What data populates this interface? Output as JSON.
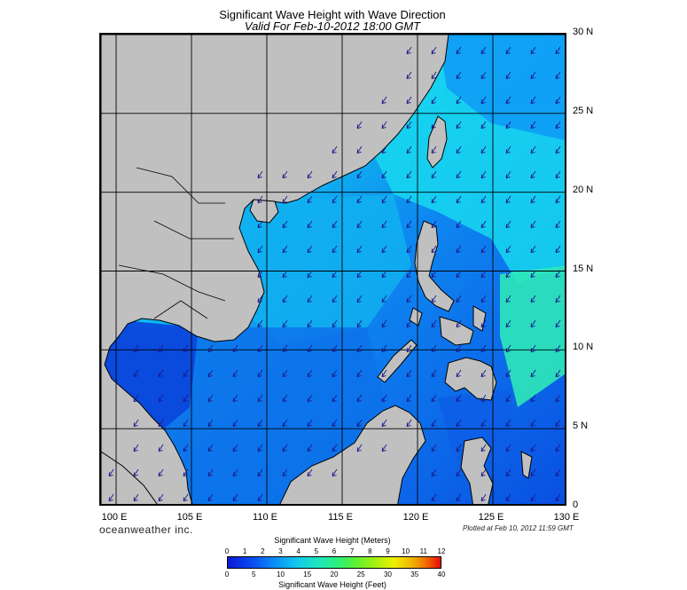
{
  "header": {
    "title": "Significant Wave Height with Wave Direction",
    "subtitle": "Valid For Feb-10-2012 18:00 GMT"
  },
  "map": {
    "lat_labels": [
      "30 N",
      "25 N",
      "20 N",
      "15 N",
      "10 N",
      "5 N",
      "0"
    ],
    "lon_labels": [
      "100 E",
      "105 E",
      "110 E",
      "115 E",
      "120 E",
      "125 E",
      "130 E"
    ],
    "lat_range": [
      0,
      30
    ],
    "lon_range": [
      99,
      130
    ],
    "land_color": "#c0c0c0",
    "grid": true,
    "arrow_direction": "from NE toward SW",
    "arrow_color": "#1a1a8c"
  },
  "footer": {
    "brand": "oceanweather inc.",
    "plotted": "Plotted at Feb 10, 2012 11:59 GMT"
  },
  "colorbar": {
    "title_top": "Significant Wave Height (Meters)",
    "title_bottom": "Significant Wave Height (Feet)",
    "meters": [
      "0",
      "1",
      "2",
      "3",
      "4",
      "5",
      "6",
      "7",
      "8",
      "9",
      "10",
      "11",
      "12"
    ],
    "feet": [
      "0",
      "5",
      "10",
      "15",
      "20",
      "25",
      "30",
      "35",
      "40"
    ]
  }
}
